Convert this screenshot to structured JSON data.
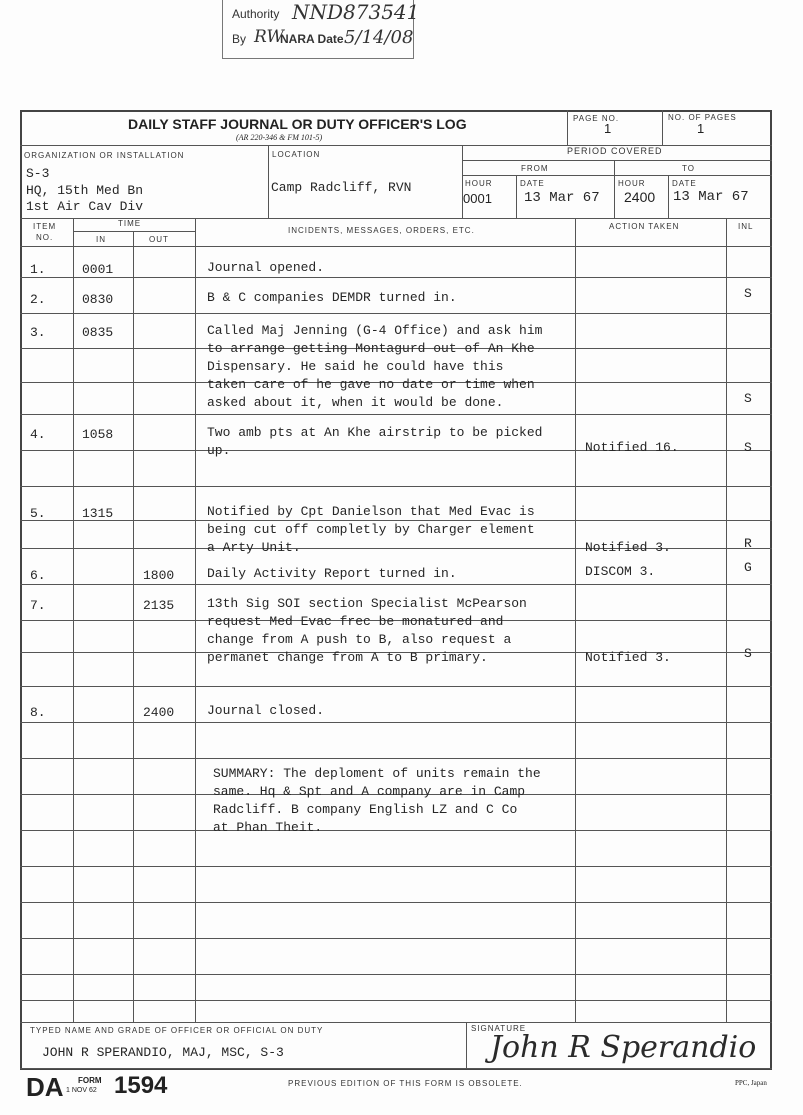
{
  "declassification_stamp": {
    "authority_label": "Authority",
    "authority_value": "NND873541",
    "by_label": "By",
    "by_value": "RW",
    "nara_label": "NARA Date",
    "date_value": "5/14/08"
  },
  "form": {
    "title": "DAILY STAFF JOURNAL OR DUTY OFFICER'S LOG",
    "subtitle": "(AR 220-346 & FM 101-5)",
    "page_no_label": "PAGE NO.",
    "page_no": "1",
    "no_pages_label": "NO. OF PAGES",
    "no_pages": "1",
    "org_label": "ORGANIZATION OR INSTALLATION",
    "org_lines": [
      "S-3",
      "HQ, 15th Med Bn",
      "1st Air Cav Div"
    ],
    "location_label": "LOCATION",
    "location": "Camp Radcliff, RVN",
    "period_label": "PERIOD COVERED",
    "from_label": "FROM",
    "to_label": "TO",
    "hour_label": "HOUR",
    "date_label": "DATE",
    "from_hour": "0001",
    "from_date": "13 Mar 67",
    "to_hour": "2400",
    "to_date": "13 Mar 67",
    "col_item": "ITEM",
    "col_no": "NO.",
    "col_time": "TIME",
    "col_in": "IN",
    "col_out": "OUT",
    "col_incidents": "INCIDENTS, MESSAGES, ORDERS, ETC.",
    "col_action": "ACTION TAKEN",
    "col_inl": "INL"
  },
  "entries": [
    {
      "item": "1.",
      "in": "0001",
      "out": "",
      "lines": [
        "Journal opened."
      ],
      "action": "",
      "inl": ""
    },
    {
      "item": "2.",
      "in": "0830",
      "out": "",
      "lines": [
        "B & C companies DEMDR turned in."
      ],
      "action": "",
      "inl": "S"
    },
    {
      "item": "3.",
      "in": "0835",
      "out": "",
      "lines": [
        "Called Maj Jenning (G-4 Office) and ask him",
        "to arrange getting Montagurd out of An Khe",
        "Dispensary. He said he could have this",
        "taken care of he gave no date or time when",
        "asked about it, when it would be done."
      ],
      "action": "",
      "inl": "S"
    },
    {
      "item": "4.",
      "in": "1058",
      "out": "",
      "lines": [
        "Two amb pts at An Khe airstrip to be picked",
        "up."
      ],
      "action": "Notified 16.",
      "inl": "S"
    },
    {
      "item": "5.",
      "in": "1315",
      "out": "",
      "lines": [
        "Notified by Cpt Danielson that Med Evac is",
        "being cut off completly by Charger element",
        "a Arty Unit."
      ],
      "action": "Notified 3.",
      "inl": "R"
    },
    {
      "item": "6.",
      "in": "",
      "out": "1800",
      "lines": [
        "Daily Activity Report turned in."
      ],
      "action": "DISCOM 3.",
      "inl": "G"
    },
    {
      "item": "7.",
      "in": "",
      "out": "2135",
      "lines": [
        "13th Sig SOI section Specialist McPearson",
        "request Med Evac frec be monatured and",
        "change from A push to B, also request a",
        "permanet change from A to B primary."
      ],
      "action": "Notified 3.",
      "inl": "S"
    },
    {
      "item": "8.",
      "in": "",
      "out": "2400",
      "lines": [
        "Journal closed."
      ],
      "action": "",
      "inl": ""
    }
  ],
  "summary_lines": [
    "SUMMARY: The deploment of units remain the",
    "same. Hq & Spt and A company are in Camp",
    "Radcliff. B company English LZ and C Co",
    "at Phan Theit."
  ],
  "footer": {
    "typed_name_label": "TYPED NAME AND GRADE OF OFFICER OR OFFICIAL ON DUTY",
    "typed_name": "JOHN R SPERANDIO, MAJ, MSC, S-3",
    "signature_label": "SIGNATURE",
    "signature": "John R Sperandio",
    "da": "DA",
    "form_word": "FORM",
    "form_date": "1 NOV 62",
    "form_number": "1594",
    "obsolete_note": "PREVIOUS EDITION OF THIS FORM IS OBSOLETE.",
    "printer": "PPC, Japan"
  }
}
